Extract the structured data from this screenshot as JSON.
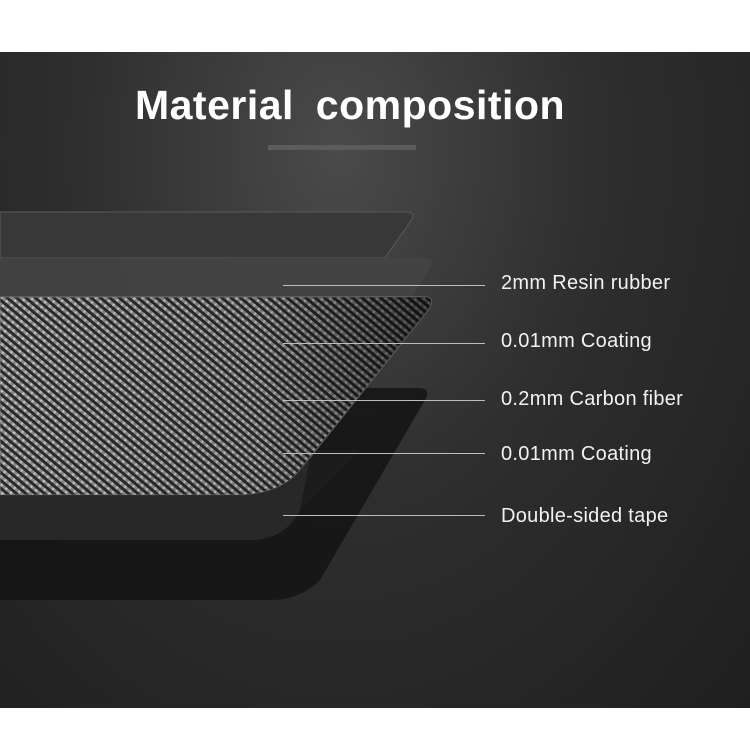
{
  "title": "Material  composition",
  "layers": [
    {
      "label": "2mm Resin rubber"
    },
    {
      "label": "0.01mm Coating"
    },
    {
      "label": "0.2mm Carbon fiber"
    },
    {
      "label": "0.01mm Coating"
    },
    {
      "label": "Double-sided tape"
    }
  ],
  "colors": {
    "background": "#2b2b2b",
    "text": "#ffffff",
    "leader": "#bdbdbd"
  }
}
